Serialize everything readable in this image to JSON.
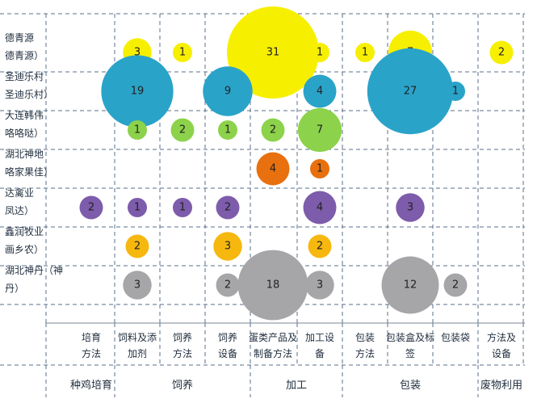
{
  "chart_data": {
    "type": "bubble",
    "rows": [
      [
        "德青源",
        "德青源）"
      ],
      [
        "圣迪乐村",
        "圣迪乐村）"
      ],
      [
        "大连韩伟",
        "咯咯哒）"
      ],
      [
        "湖北神地",
        "咯家果佳）"
      ],
      [
        "达禽业",
        "凤达）"
      ],
      [
        "鑫润牧业",
        "画乡农）"
      ],
      [
        "湖北神丹（神",
        "丹）"
      ]
    ],
    "columns": [
      [
        "培育",
        "方法"
      ],
      [
        "饲料及添",
        "加剂"
      ],
      [
        "饲养",
        "方法"
      ],
      [
        "饲养",
        "设备"
      ],
      [
        "蛋类产品及",
        "制备方法"
      ],
      [
        "加工设",
        "备"
      ],
      [
        "包装",
        "方法"
      ],
      [
        "包装盒及标",
        "签"
      ],
      [
        "包装袋",
        ""
      ],
      [
        "方法及",
        "设备"
      ]
    ],
    "groups": [
      "种鸡培育",
      "饲养",
      "加工",
      "包装",
      "废物利用"
    ],
    "series": [
      {
        "row": 0,
        "color": "#f7ef00",
        "points": [
          [
            1,
            3
          ],
          [
            2,
            1
          ],
          [
            4,
            31
          ],
          [
            5,
            1
          ],
          [
            6,
            1
          ],
          [
            7,
            7
          ],
          [
            9,
            2
          ]
        ]
      },
      {
        "row": 1,
        "color": "#2aa3c9",
        "points": [
          [
            1,
            19
          ],
          [
            3,
            9
          ],
          [
            5,
            4
          ],
          [
            7,
            27
          ],
          [
            8,
            1
          ]
        ]
      },
      {
        "row": 2,
        "color": "#8cd24a",
        "points": [
          [
            1,
            1
          ],
          [
            2,
            2
          ],
          [
            3,
            1
          ],
          [
            4,
            2
          ],
          [
            5,
            7
          ]
        ]
      },
      {
        "row": 3,
        "color": "#e8700e",
        "points": [
          [
            4,
            4
          ],
          [
            5,
            1
          ]
        ]
      },
      {
        "row": 4,
        "color": "#7d5cab",
        "points": [
          [
            0,
            2
          ],
          [
            1,
            1
          ],
          [
            2,
            1
          ],
          [
            3,
            2
          ],
          [
            5,
            4
          ],
          [
            7,
            3
          ]
        ]
      },
      {
        "row": 5,
        "color": "#f6b80e",
        "points": [
          [
            1,
            2
          ],
          [
            3,
            3
          ],
          [
            5,
            2
          ]
        ]
      },
      {
        "row": 6,
        "color": "#a6a6a8",
        "points": [
          [
            1,
            3
          ],
          [
            3,
            2
          ],
          [
            4,
            18
          ],
          [
            5,
            3
          ],
          [
            7,
            12
          ],
          [
            8,
            2
          ]
        ]
      }
    ]
  }
}
